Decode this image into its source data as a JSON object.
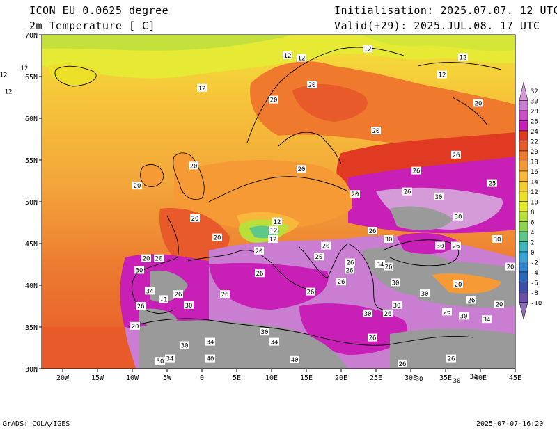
{
  "header": {
    "model": "ICON EU 0.0625 degree",
    "variable": "2m Temperature [ C]",
    "init": "Initialisation: 2025.07.07. 12 UTC",
    "valid": "Valid(+29): 2025.JUL.08. 17 UTC"
  },
  "axes": {
    "lat_labels": [
      "70N",
      "65N",
      "60N",
      "55N",
      "50N",
      "45N",
      "40N",
      "35N",
      "30N"
    ],
    "lon_labels": [
      "20W",
      "15W",
      "10W",
      "5W",
      "0",
      "5E",
      "10E",
      "15E",
      "20E",
      "25E",
      "30E",
      "35E",
      "40E",
      "45E"
    ]
  },
  "legend": {
    "levels": [
      "32",
      "30",
      "28",
      "26",
      "24",
      "22",
      "20",
      "18",
      "16",
      "14",
      "12",
      "10",
      "8",
      "6",
      "4",
      "2",
      "0",
      "-2",
      "-4",
      "-6",
      "-8",
      "-10"
    ],
    "colors": [
      "#d49bd8",
      "#c97ed2",
      "#cc4fc9",
      "#c81fb6",
      "#e03a22",
      "#e85a2a",
      "#ef7a2e",
      "#f59a35",
      "#f8b93b",
      "#f5cd2d",
      "#ede028",
      "#e2ec2c",
      "#b9e03a",
      "#8fd44e",
      "#5cc88a",
      "#3fb7b8",
      "#3aa3d6",
      "#2f84cc",
      "#2c66bb",
      "#3a4fab",
      "#6a4fa8",
      "#8e70b6"
    ]
  },
  "contour_labels": [
    {
      "text": "12",
      "lon": -28.5,
      "lat": 65.2
    },
    {
      "text": "12",
      "lon": -25.5,
      "lat": 66.0
    },
    {
      "text": "12",
      "lon": -27.8,
      "lat": 63.2
    },
    {
      "text": "12",
      "lon": 0.0,
      "lat": 63.6
    },
    {
      "text": "12",
      "lon": 12.3,
      "lat": 67.5
    },
    {
      "text": "12",
      "lon": 14.3,
      "lat": 67.2
    },
    {
      "text": "12",
      "lon": 23.8,
      "lat": 68.3
    },
    {
      "text": "12",
      "lon": 37.5,
      "lat": 67.3
    },
    {
      "text": "12",
      "lon": 34.5,
      "lat": 65.2
    },
    {
      "text": "20",
      "lon": 15.8,
      "lat": 64.0
    },
    {
      "text": "20",
      "lon": 10.3,
      "lat": 62.2
    },
    {
      "text": "20",
      "lon": 25.0,
      "lat": 58.5
    },
    {
      "text": "20",
      "lon": 39.7,
      "lat": 61.8
    },
    {
      "text": "20",
      "lon": -1.2,
      "lat": 54.3
    },
    {
      "text": "20",
      "lon": -9.3,
      "lat": 51.9
    },
    {
      "text": "20",
      "lon": 14.3,
      "lat": 53.9
    },
    {
      "text": "20",
      "lon": 22.0,
      "lat": 50.9
    },
    {
      "text": "20",
      "lon": -1.0,
      "lat": 48.0
    },
    {
      "text": "26",
      "lon": 36.5,
      "lat": 55.6
    },
    {
      "text": "26",
      "lon": 30.8,
      "lat": 53.7
    },
    {
      "text": "26",
      "lon": 29.5,
      "lat": 51.2
    },
    {
      "text": "25",
      "lon": 41.7,
      "lat": 52.2
    },
    {
      "text": "30",
      "lon": 34.0,
      "lat": 50.6
    },
    {
      "text": "30",
      "lon": 36.8,
      "lat": 48.2
    },
    {
      "text": "12",
      "lon": 10.8,
      "lat": 47.6
    },
    {
      "text": "12",
      "lon": 10.3,
      "lat": 46.6
    },
    {
      "text": "12",
      "lon": 10.2,
      "lat": 45.5
    },
    {
      "text": "20",
      "lon": 2.2,
      "lat": 45.7
    },
    {
      "text": "20",
      "lon": 8.2,
      "lat": 44.1
    },
    {
      "text": "20",
      "lon": 17.8,
      "lat": 44.7
    },
    {
      "text": "20",
      "lon": 16.8,
      "lat": 43.4
    },
    {
      "text": "26",
      "lon": 24.5,
      "lat": 46.5
    },
    {
      "text": "30",
      "lon": 26.8,
      "lat": 45.5
    },
    {
      "text": "30",
      "lon": 34.2,
      "lat": 44.7
    },
    {
      "text": "26",
      "lon": 36.5,
      "lat": 44.7
    },
    {
      "text": "30",
      "lon": 42.4,
      "lat": 45.5
    },
    {
      "text": "20",
      "lon": 44.3,
      "lat": 42.2
    },
    {
      "text": "20",
      "lon": -8.0,
      "lat": 43.2
    },
    {
      "text": "20",
      "lon": -6.2,
      "lat": 43.2
    },
    {
      "text": "30",
      "lon": -9.0,
      "lat": 41.8
    },
    {
      "text": "34",
      "lon": -7.5,
      "lat": 39.3
    },
    {
      "text": "26",
      "lon": -3.4,
      "lat": 38.9
    },
    {
      "text": "26",
      "lon": 3.3,
      "lat": 38.9
    },
    {
      "text": "26",
      "lon": 8.3,
      "lat": 41.4
    },
    {
      "text": "26",
      "lon": 15.6,
      "lat": 39.2
    },
    {
      "text": "26",
      "lon": 20.0,
      "lat": 40.4
    },
    {
      "text": "26",
      "lon": 21.2,
      "lat": 41.8
    },
    {
      "text": "26",
      "lon": 21.3,
      "lat": 42.7
    },
    {
      "text": "34",
      "lon": 25.6,
      "lat": 42.5
    },
    {
      "text": "26",
      "lon": 26.8,
      "lat": 42.2
    },
    {
      "text": "30",
      "lon": 27.8,
      "lat": 40.3
    },
    {
      "text": "30",
      "lon": 32.0,
      "lat": 39.0
    },
    {
      "text": "20",
      "lon": 36.8,
      "lat": 40.1
    },
    {
      "text": "26",
      "lon": 38.7,
      "lat": 38.2
    },
    {
      "text": "20",
      "lon": 42.7,
      "lat": 37.7
    },
    {
      "text": "-1",
      "lon": -5.5,
      "lat": 38.3
    },
    {
      "text": "30",
      "lon": -1.9,
      "lat": 37.6
    },
    {
      "text": "26",
      "lon": -8.8,
      "lat": 37.5
    },
    {
      "text": "20",
      "lon": -9.6,
      "lat": 35.1
    },
    {
      "text": "30",
      "lon": 23.8,
      "lat": 36.6
    },
    {
      "text": "30",
      "lon": 28.0,
      "lat": 37.6
    },
    {
      "text": "26",
      "lon": 26.7,
      "lat": 36.6
    },
    {
      "text": "26",
      "lon": 35.2,
      "lat": 36.8
    },
    {
      "text": "30",
      "lon": 37.6,
      "lat": 36.3
    },
    {
      "text": "34",
      "lon": 40.9,
      "lat": 35.9
    },
    {
      "text": "30",
      "lon": 9.0,
      "lat": 34.4
    },
    {
      "text": "34",
      "lon": 10.4,
      "lat": 33.2
    },
    {
      "text": "26",
      "lon": 24.5,
      "lat": 33.7
    },
    {
      "text": "30",
      "lon": -2.5,
      "lat": 32.8
    },
    {
      "text": "34",
      "lon": 1.2,
      "lat": 33.2
    },
    {
      "text": "34",
      "lon": -4.6,
      "lat": 31.2
    },
    {
      "text": "30",
      "lon": -6.0,
      "lat": 30.9
    },
    {
      "text": "40",
      "lon": 1.2,
      "lat": 31.2
    },
    {
      "text": "40",
      "lon": 13.3,
      "lat": 31.1
    },
    {
      "text": "26",
      "lon": 28.8,
      "lat": 30.6
    },
    {
      "text": "26",
      "lon": 35.8,
      "lat": 31.2
    },
    {
      "text": "34",
      "lon": 39.0,
      "lat": 29.1
    },
    {
      "text": "30",
      "lon": 31.2,
      "lat": 28.8
    },
    {
      "text": "30",
      "lon": 36.6,
      "lat": 28.6
    }
  ],
  "footer": {
    "left": "GrADS: COLA/IGES",
    "right": "2025-07-07-16:20"
  }
}
